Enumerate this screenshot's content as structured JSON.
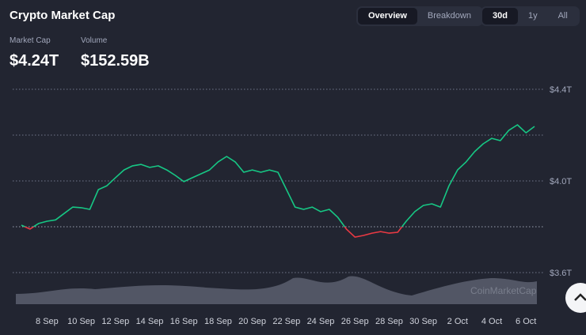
{
  "header": {
    "title": "Crypto Market Cap",
    "tabs": [
      "Overview",
      "Breakdown"
    ],
    "active_tab": 0,
    "ranges": [
      "30d",
      "1y",
      "All"
    ],
    "active_range": 0,
    "stats": [
      {
        "label": "Market Cap",
        "value": "$4.24T"
      },
      {
        "label": "Volume",
        "value": "$152.59B"
      }
    ]
  },
  "chart_data": {
    "type": "line",
    "watermark": "CoinMarketCap",
    "categories": [
      null,
      null,
      null,
      "8 Sep",
      null,
      null,
      null,
      "10 Sep",
      null,
      null,
      null,
      "12 Sep",
      null,
      null,
      null,
      "14 Sep",
      null,
      null,
      null,
      "16 Sep",
      null,
      null,
      null,
      "18 Sep",
      null,
      null,
      null,
      "20 Sep",
      null,
      null,
      null,
      "22 Sep",
      null,
      null,
      null,
      "24 Sep",
      null,
      null,
      null,
      "26 Sep",
      null,
      null,
      null,
      "28 Sep",
      null,
      null,
      null,
      "30 Sep",
      null,
      null,
      null,
      "2 Oct",
      null,
      null,
      null,
      "4 Oct",
      null,
      null,
      null,
      "6 Oct",
      null
    ],
    "series": [
      {
        "name": "Market Cap",
        "values": [
          3.807,
          3.79,
          3.814,
          3.824,
          3.83,
          3.858,
          3.886,
          3.883,
          3.876,
          3.962,
          3.979,
          4.014,
          4.048,
          4.066,
          4.072,
          4.059,
          4.066,
          4.048,
          4.024,
          3.997,
          4.014,
          4.031,
          4.048,
          4.083,
          4.107,
          4.083,
          4.038,
          4.048,
          4.038,
          4.048,
          4.038,
          3.962,
          3.886,
          3.876,
          3.886,
          3.866,
          3.876,
          3.841,
          3.79,
          3.755,
          3.762,
          3.772,
          3.779,
          3.772,
          3.776,
          3.824,
          3.866,
          3.893,
          3.9,
          3.886,
          3.979,
          4.048,
          4.083,
          4.128,
          4.162,
          4.186,
          4.176,
          4.221,
          4.245,
          4.21,
          4.238
        ]
      }
    ],
    "up_color": "#16c784",
    "down_color": "#ea3943",
    "baseline": 3.8,
    "ylim": [
      3.45,
      4.45
    ],
    "yticks": [
      {
        "value": 3.6,
        "label": "$3.6T"
      },
      {
        "value": 3.8,
        "label": null
      },
      {
        "value": 4.0,
        "label": "$4.0T"
      },
      {
        "value": 4.2,
        "label": null
      },
      {
        "value": 4.4,
        "label": "$4.4T"
      }
    ],
    "grid": true
  }
}
